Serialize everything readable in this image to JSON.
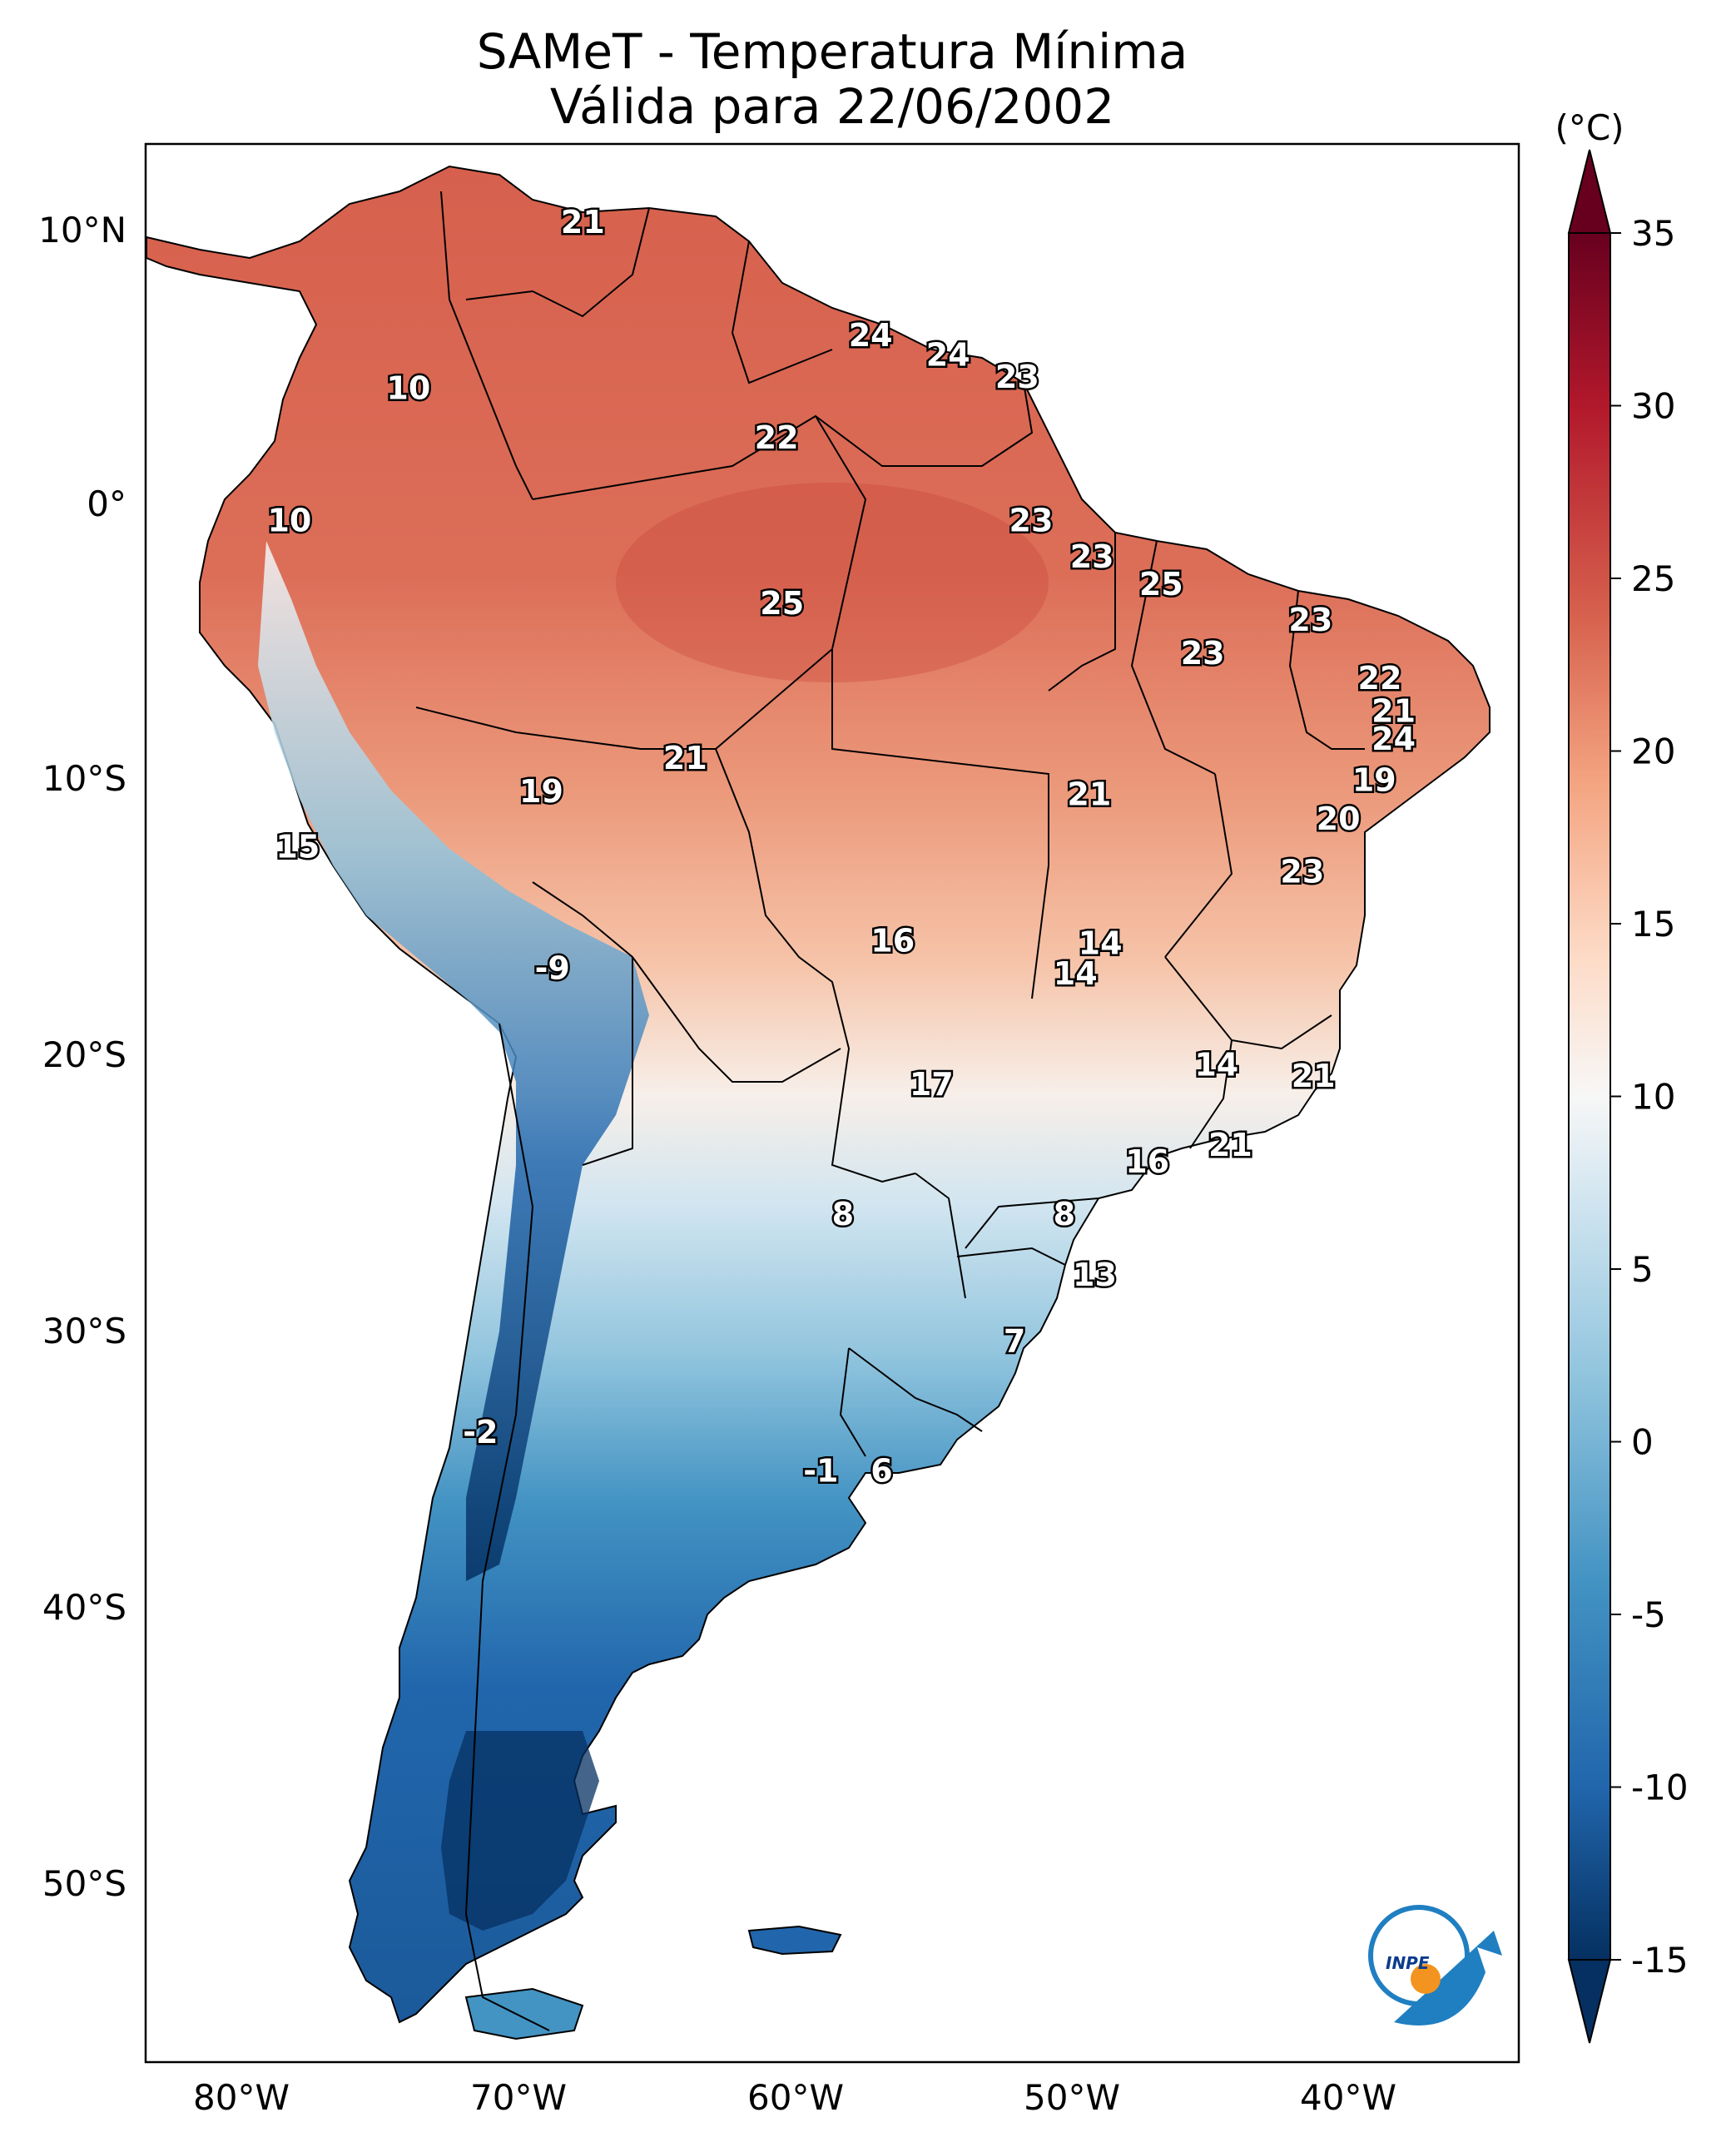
{
  "title": {
    "line1": "SAMeT - Temperatura Mínima",
    "line2": "Válida para 22/06/2002"
  },
  "lat_ticks": [
    "10°N",
    "0°",
    "10°S",
    "20°S",
    "30°S",
    "40°S",
    "50°S"
  ],
  "lon_ticks": [
    "80°W",
    "70°W",
    "60°W",
    "50°W",
    "40°W"
  ],
  "colorbar": {
    "unit": "(°C)",
    "ticks": [
      "35",
      "30",
      "25",
      "20",
      "15",
      "10",
      "5",
      "0",
      "-5",
      "-10",
      "-15"
    ],
    "colors": {
      "max": "#67001f",
      "mid": "#f7f7f7",
      "min": "#053061"
    }
  },
  "map_labels": [
    {
      "text": "21",
      "lon": -67.2,
      "lat": 10.6
    },
    {
      "text": "24",
      "lon": -56.8,
      "lat": 6.5
    },
    {
      "text": "24",
      "lon": -54.0,
      "lat": 5.8
    },
    {
      "text": "23",
      "lon": -51.5,
      "lat": 5.0
    },
    {
      "text": "10",
      "lon": -73.5,
      "lat": 4.6
    },
    {
      "text": "22",
      "lon": -60.2,
      "lat": 2.8
    },
    {
      "text": "10",
      "lon": -77.8,
      "lat": -0.2
    },
    {
      "text": "23",
      "lon": -51.0,
      "lat": -0.2
    },
    {
      "text": "23",
      "lon": -48.8,
      "lat": -1.5
    },
    {
      "text": "25",
      "lon": -60.0,
      "lat": -3.2
    },
    {
      "text": "25",
      "lon": -46.3,
      "lat": -2.5
    },
    {
      "text": "23",
      "lon": -40.9,
      "lat": -3.8
    },
    {
      "text": "23",
      "lon": -44.8,
      "lat": -5.0
    },
    {
      "text": "22",
      "lon": -38.4,
      "lat": -5.9
    },
    {
      "text": "21",
      "lon": -37.9,
      "lat": -7.1
    },
    {
      "text": "24",
      "lon": -37.9,
      "lat": -8.1
    },
    {
      "text": "21",
      "lon": -63.5,
      "lat": -8.8
    },
    {
      "text": "19",
      "lon": -68.7,
      "lat": -10.0
    },
    {
      "text": "21",
      "lon": -48.9,
      "lat": -10.1
    },
    {
      "text": "19",
      "lon": -38.6,
      "lat": -9.6
    },
    {
      "text": "20",
      "lon": -39.9,
      "lat": -11.0
    },
    {
      "text": "15",
      "lon": -77.5,
      "lat": -12.0
    },
    {
      "text": "23",
      "lon": -41.2,
      "lat": -12.9
    },
    {
      "text": "16",
      "lon": -56.0,
      "lat": -15.4
    },
    {
      "text": "14",
      "lon": -48.5,
      "lat": -15.5
    },
    {
      "text": "14",
      "lon": -49.4,
      "lat": -16.6
    },
    {
      "text": "-9",
      "lon": -68.3,
      "lat": -16.4
    },
    {
      "text": "14",
      "lon": -44.3,
      "lat": -19.9
    },
    {
      "text": "21",
      "lon": -40.8,
      "lat": -20.3
    },
    {
      "text": "17",
      "lon": -54.6,
      "lat": -20.6
    },
    {
      "text": "16",
      "lon": -46.8,
      "lat": -23.4
    },
    {
      "text": "21",
      "lon": -43.8,
      "lat": -22.8
    },
    {
      "text": "8",
      "lon": -57.8,
      "lat": -25.3
    },
    {
      "text": "8",
      "lon": -49.8,
      "lat": -25.3
    },
    {
      "text": "13",
      "lon": -48.7,
      "lat": -27.5
    },
    {
      "text": "7",
      "lon": -51.6,
      "lat": -29.9
    },
    {
      "text": "-2",
      "lon": -70.9,
      "lat": -33.2
    },
    {
      "text": "-1",
      "lon": -58.6,
      "lat": -34.6
    },
    {
      "text": "6",
      "lon": -56.4,
      "lat": -34.6
    }
  ]
}
